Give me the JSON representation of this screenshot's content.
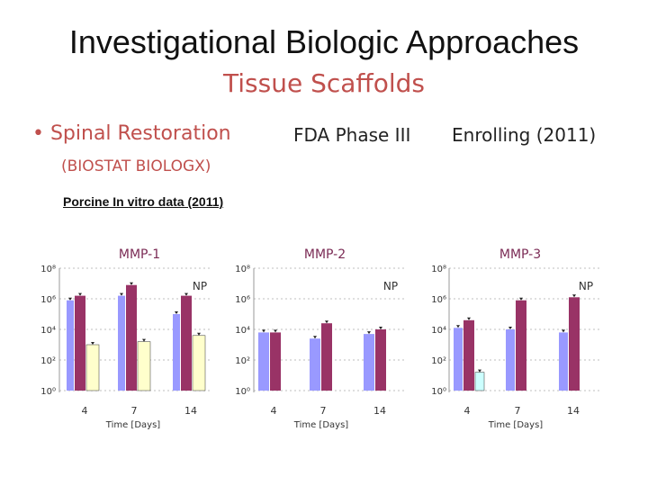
{
  "slide": {
    "title": "Investigational Biologic Approaches",
    "subtitle": "Tissue Scaffolds",
    "bullet": "• Spinal Restoration",
    "phase": "FDA Phase III",
    "enrolling": "Enrolling (2011)",
    "biostat": "(BIOSTAT BIOLOGX)",
    "porcine": "Porcine In vitro data (2011)"
  },
  "colors": {
    "lavender": "#9999ff",
    "plum": "#993366",
    "lightyellow": "#ffffcc",
    "lightcyan": "#ccffff",
    "title_red": "#c0504d"
  },
  "chart_data": [
    {
      "type": "bar",
      "title": "MMP-1",
      "y_scale": "log",
      "ylim": [
        0,
        8
      ],
      "yticks": [
        "10⁰",
        "10²",
        "10⁴",
        "10⁶",
        "10⁸"
      ],
      "categories": [
        "4",
        "7",
        "14"
      ],
      "xlabel": "Time [Days]",
      "annotation": "NP",
      "series": [
        {
          "color": "#9999ff",
          "values": [
            5.9,
            6.2,
            5.0
          ]
        },
        {
          "color": "#993366",
          "values": [
            6.2,
            6.9,
            6.2
          ]
        },
        {
          "color": "#ffffcc",
          "values": [
            3.0,
            3.2,
            3.6
          ]
        }
      ]
    },
    {
      "type": "bar",
      "title": "MMP-2",
      "y_scale": "log",
      "ylim": [
        0,
        8
      ],
      "yticks": [
        "10⁰",
        "10²",
        "10⁴",
        "10⁶",
        "10⁸"
      ],
      "categories": [
        "4",
        "7",
        "14"
      ],
      "xlabel": "Time [Days]",
      "annotation": "NP",
      "series": [
        {
          "color": "#9999ff",
          "values": [
            3.8,
            3.4,
            3.7
          ]
        },
        {
          "color": "#993366",
          "values": [
            3.8,
            4.4,
            4.0
          ]
        }
      ]
    },
    {
      "type": "bar",
      "title": "MMP-3",
      "y_scale": "log",
      "ylim": [
        0,
        8
      ],
      "yticks": [
        "10⁰",
        "10²",
        "10⁴",
        "10⁶",
        "10⁸"
      ],
      "categories": [
        "4",
        "7",
        "14"
      ],
      "xlabel": "Time [Days]",
      "annotation": "NP",
      "series": [
        {
          "color": "#9999ff",
          "values": [
            4.1,
            4.0,
            3.8
          ]
        },
        {
          "color": "#993366",
          "values": [
            4.6,
            5.9,
            6.1
          ]
        },
        {
          "color": "#ccffff",
          "values": [
            1.2,
            null,
            null
          ]
        }
      ]
    }
  ]
}
